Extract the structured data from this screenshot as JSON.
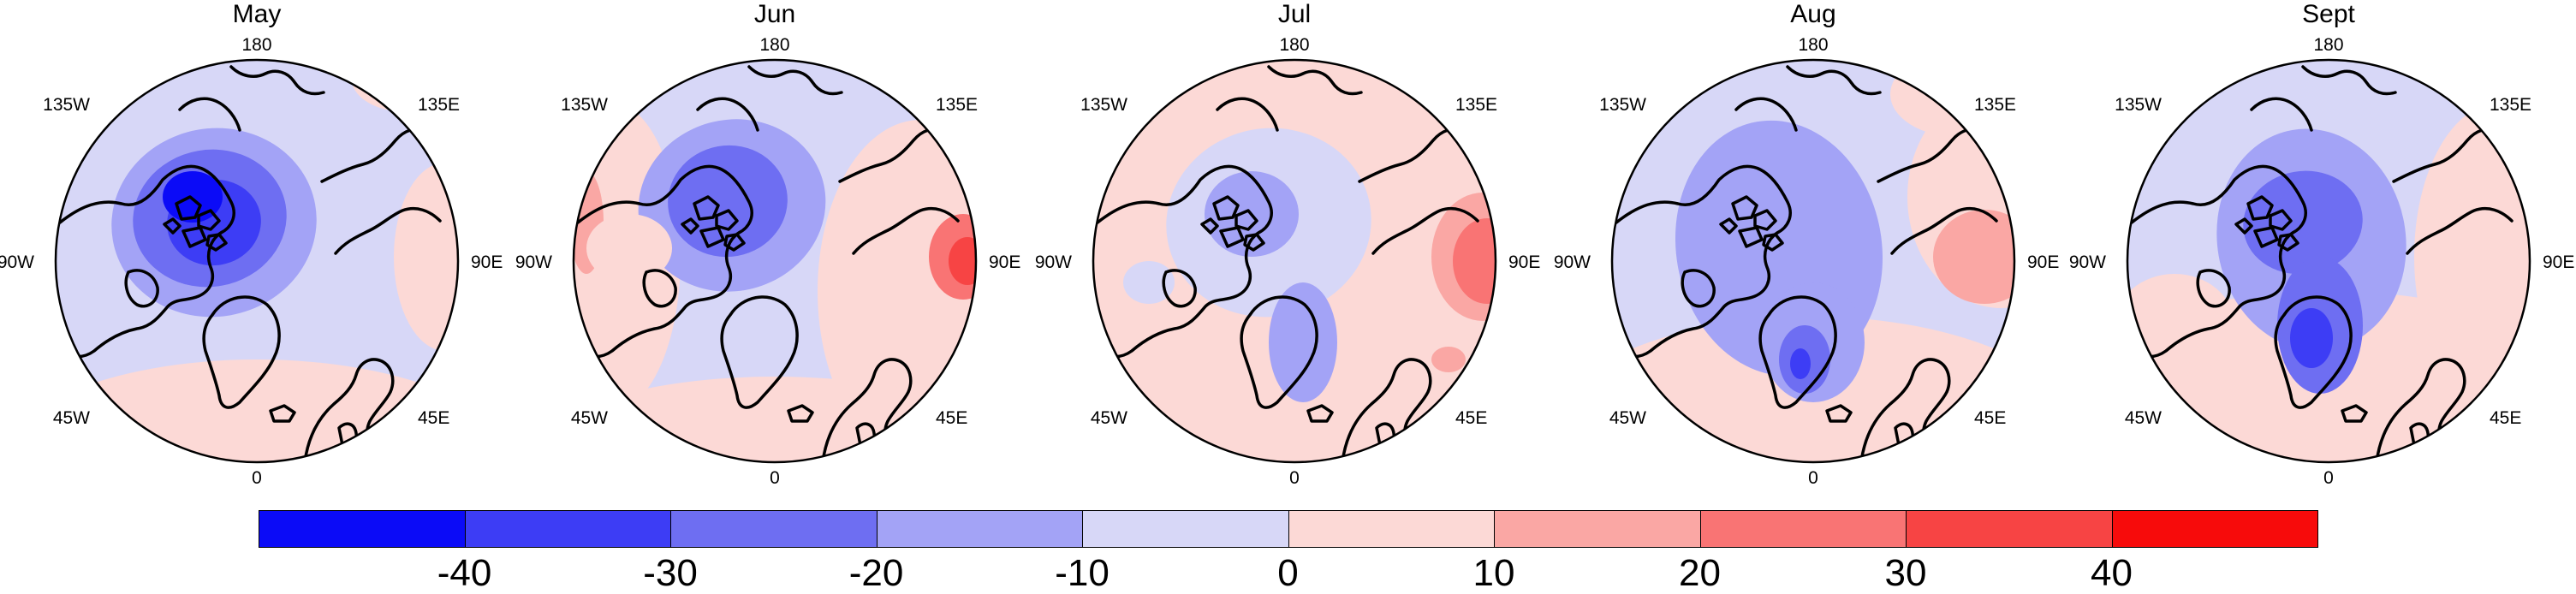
{
  "panels": [
    {
      "title": "May",
      "pattern": "may"
    },
    {
      "title": "Jun",
      "pattern": "jun"
    },
    {
      "title": "Jul",
      "pattern": "jul"
    },
    {
      "title": "Aug",
      "pattern": "aug"
    },
    {
      "title": "Sept",
      "pattern": "sep"
    }
  ],
  "longitude_labels": {
    "top": "180",
    "bottom": "0",
    "left": "90W",
    "right": "90E",
    "upper_left": "135W",
    "upper_right": "135E",
    "lower_left": "45W",
    "lower_right": "45E"
  },
  "colorbar": {
    "tick_labels": [
      "-40",
      "-30",
      "-20",
      "-10",
      "0",
      "10",
      "20",
      "30",
      "40"
    ],
    "colors": [
      "#0b0bf7",
      "#3d3df5",
      "#6e6ef2",
      "#a3a3f6",
      "#d7d7f7",
      "#fcd9d6",
      "#faa7a4",
      "#f97474",
      "#f74444",
      "#f70b0b"
    ]
  },
  "map_colors": {
    "ocean_neutral_blue": "#d7d7f7",
    "ocean_neutral_red": "#fcd9d6",
    "coastline": "#000000",
    "frame": "#000000"
  }
}
